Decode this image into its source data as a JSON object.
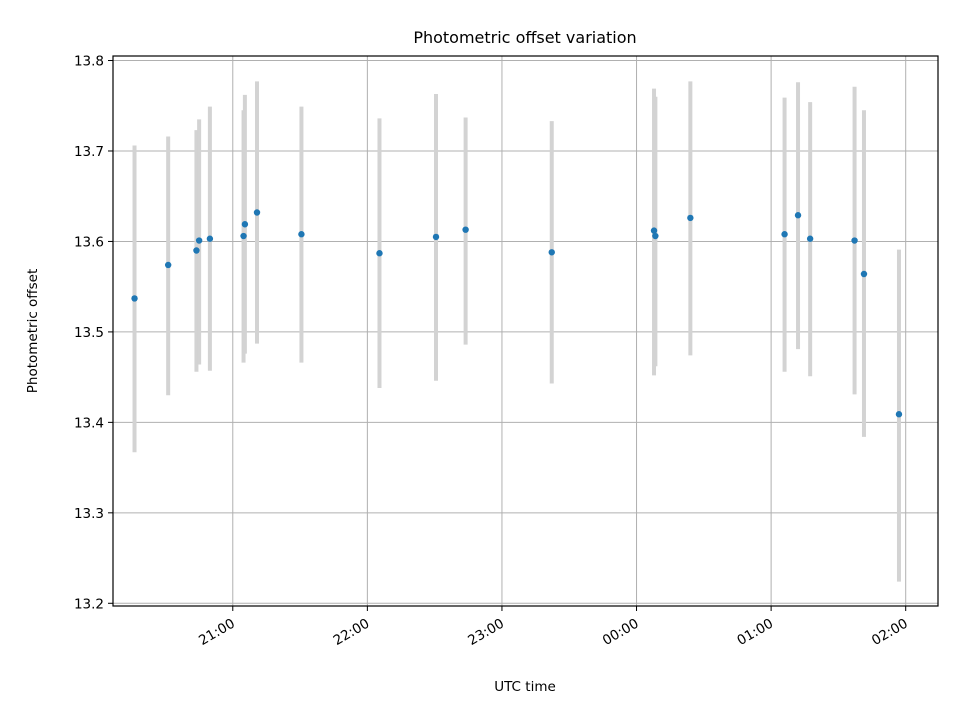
{
  "chart_data": {
    "type": "scatter",
    "title": "Photometric offset variation",
    "xlabel": "UTC time",
    "ylabel": "Photometric offset",
    "grid": true,
    "x_tick_labels": [
      "21:00",
      "22:00",
      "23:00",
      "00:00",
      "01:00",
      "02:00"
    ],
    "y_tick_labels": [
      "13.2",
      "13.3",
      "13.4",
      "13.5",
      "13.6",
      "13.7",
      "13.8"
    ],
    "xlim_hours": [
      20.11,
      26.24
    ],
    "ylim": [
      13.197,
      13.805
    ],
    "marker_color": "#1f77b4",
    "errorbar_color": "#d3d3d3",
    "series": [
      {
        "x_hours": [
          20.27,
          20.52,
          20.73,
          20.75,
          20.83,
          21.08,
          21.09,
          21.18,
          21.51,
          22.09,
          22.51,
          22.73,
          23.37,
          24.13,
          24.14,
          24.4,
          25.1,
          25.2,
          25.29,
          25.62,
          25.69,
          25.95
        ],
        "y": [
          13.537,
          13.574,
          13.59,
          13.601,
          13.603,
          13.606,
          13.619,
          13.632,
          13.608,
          13.587,
          13.605,
          13.613,
          13.588,
          13.612,
          13.606,
          13.626,
          13.608,
          13.629,
          13.603,
          13.601,
          13.564,
          13.409
        ],
        "y_low": [
          13.367,
          13.43,
          13.456,
          13.464,
          13.457,
          13.466,
          13.476,
          13.487,
          13.466,
          13.438,
          13.446,
          13.486,
          13.443,
          13.452,
          13.462,
          13.474,
          13.456,
          13.481,
          13.451,
          13.431,
          13.384,
          13.224
        ],
        "y_high": [
          13.706,
          13.716,
          13.723,
          13.735,
          13.749,
          13.745,
          13.762,
          13.777,
          13.749,
          13.736,
          13.763,
          13.737,
          13.733,
          13.769,
          13.76,
          13.777,
          13.759,
          13.776,
          13.754,
          13.771,
          13.745,
          13.591
        ]
      }
    ]
  }
}
